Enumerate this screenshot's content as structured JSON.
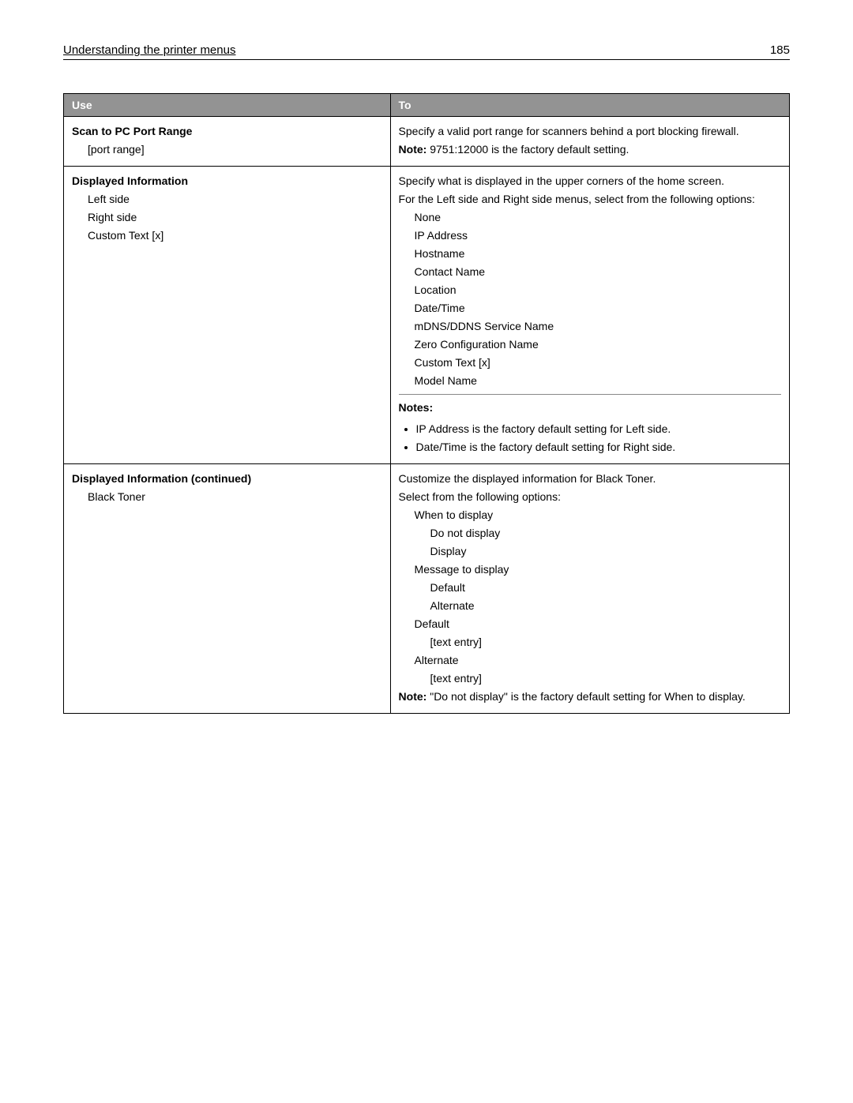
{
  "header": {
    "title": "Understanding the printer menus",
    "page": "185"
  },
  "table": {
    "headers": {
      "use": "Use",
      "to": "To"
    },
    "rows": [
      {
        "use": {
          "title": "Scan to PC Port Range",
          "items": [
            "[port range]"
          ]
        },
        "to": {
          "desc": "Specify a valid port range for scanners behind a port blocking firewall.",
          "note_label": "Note:",
          "note": " 9751:12000 is the factory default setting."
        }
      },
      {
        "use": {
          "title": "Displayed Information",
          "items": [
            "Left side",
            "Right side",
            "Custom Text [x]"
          ]
        },
        "to": {
          "desc": "Specify what is displayed in the upper corners of the home screen.",
          "desc2": "For the Left side and Right side menus, select from the following options:",
          "opts": [
            "None",
            "IP Address",
            "Hostname",
            "Contact Name",
            "Location",
            "Date/Time",
            "mDNS/DDNS Service Name",
            "Zero Configuration Name",
            "Custom Text [x]",
            "Model Name"
          ],
          "notes_label": "Notes:",
          "bullets": [
            "IP Address is the factory default setting for Left side.",
            "Date/Time is the factory default setting for Right side."
          ]
        }
      },
      {
        "use": {
          "title": "Displayed Information (continued)",
          "items": [
            "Black Toner"
          ]
        },
        "to": {
          "desc": "Customize the displayed information for Black Toner.",
          "desc2": "Select from the following options:",
          "groups": [
            {
              "h": "When to display",
              "sub": [
                "Do not display",
                "Display"
              ]
            },
            {
              "h": "Message to display",
              "sub": [
                "Default",
                "Alternate"
              ]
            },
            {
              "h": "Default",
              "sub": [
                "[text entry]"
              ]
            },
            {
              "h": "Alternate",
              "sub": [
                "[text entry]"
              ]
            }
          ],
          "note_label": "Note:",
          "note": " \"Do not display\" is the factory default setting for When to display."
        }
      }
    ]
  }
}
